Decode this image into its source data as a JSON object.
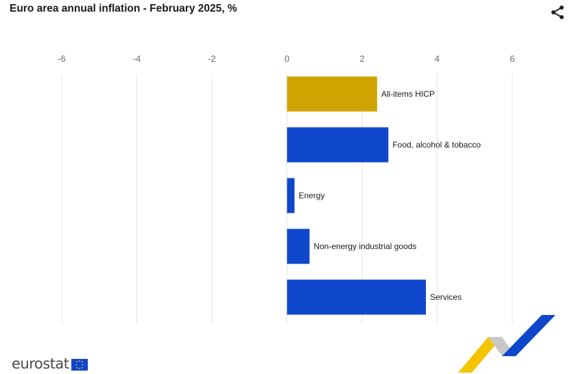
{
  "title": "Euro area annual inflation - February 2025, %",
  "share_icon": "share-icon",
  "brand": {
    "name": "eurostat",
    "flag_icon": "eu-flag-icon"
  },
  "colors": {
    "highlight": "#D0A400",
    "bar": "#0E47CB",
    "grid": "#E4E4E4",
    "axis_text": "#6b6b6b"
  },
  "chart_data": {
    "type": "bar",
    "orientation": "horizontal",
    "title": "Euro area annual inflation - February 2025, %",
    "categories": [
      "All-items HICP",
      "Food, alcohol & tobacco",
      "Energy",
      "Non-energy industrial goods",
      "Services"
    ],
    "values": [
      2.4,
      2.7,
      0.2,
      0.6,
      3.7
    ],
    "highlight": [
      "All-items HICP"
    ],
    "xlim": [
      -6,
      6
    ],
    "xticks": [
      -6,
      -4,
      -2,
      0,
      2,
      4,
      6
    ],
    "xtick_labels": [
      "-6",
      "-4",
      "-2",
      "0",
      "2",
      "4",
      "6"
    ],
    "xaxis_position": "top",
    "grid": true,
    "legend": "none"
  }
}
